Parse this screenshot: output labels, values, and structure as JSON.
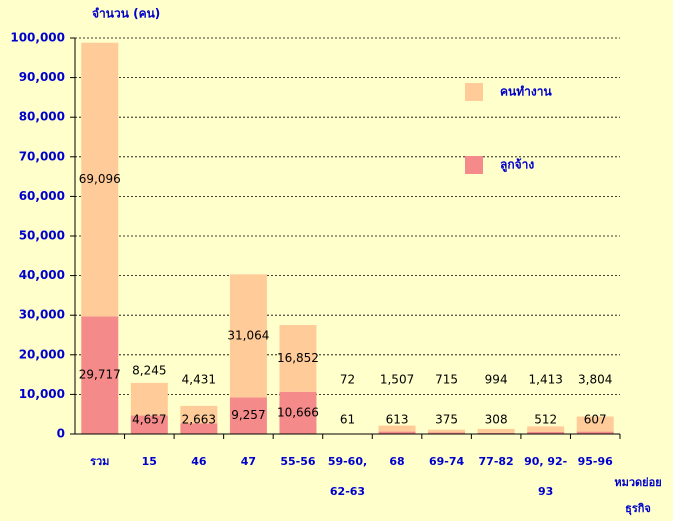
{
  "chart_data": {
    "type": "stacked_bar",
    "y_label": "จำนวน (คน)",
    "x_label": "หมวดย่อย ธุรกิจ",
    "categories": [
      "รวม",
      "15",
      "46",
      "47",
      "55-56",
      "59-60, 62-63",
      "68",
      "69-74",
      "77-82",
      "90, 92-93",
      "95-96"
    ],
    "series": [
      {
        "name": "ลูกจ้าง",
        "color": "#F58A8A",
        "values": [
          29717,
          4657,
          2663,
          9257,
          10666,
          61,
          613,
          375,
          308,
          512,
          607
        ],
        "value_labels": [
          "29,717",
          "4,657",
          "2,663",
          "9,257",
          "10,666",
          "61",
          "613",
          "375",
          "308",
          "512",
          "607"
        ]
      },
      {
        "name": "คนทำงาน",
        "color": "#FFCC99",
        "values": [
          69096,
          8245,
          4431,
          31064,
          16852,
          72,
          1507,
          715,
          994,
          1413,
          3804
        ],
        "value_labels": [
          "69,096",
          "8,245",
          "4,431",
          "31,064",
          "16,852",
          "72",
          "1,507",
          "715",
          "994",
          "1,413",
          "3,804"
        ]
      }
    ],
    "ylim": [
      0,
      100000
    ],
    "yticks": [
      0,
      {
        "value": 10000,
        "label": "10,000"
      },
      {
        "value": 20000,
        "label": "20,000"
      },
      {
        "value": 30000,
        "label": "30,000"
      },
      {
        "value": 40000,
        "label": "40,000"
      },
      {
        "value": 50000,
        "label": "50,000"
      },
      {
        "value": 60000,
        "label": "60,000"
      },
      {
        "value": 70000,
        "label": "70,000"
      },
      {
        "value": 80000,
        "label": "80,000"
      },
      {
        "value": 90000,
        "label": "90,000"
      },
      {
        "value": 100000,
        "label": "100,000"
      }
    ],
    "grid": true,
    "legend": "upper right"
  }
}
